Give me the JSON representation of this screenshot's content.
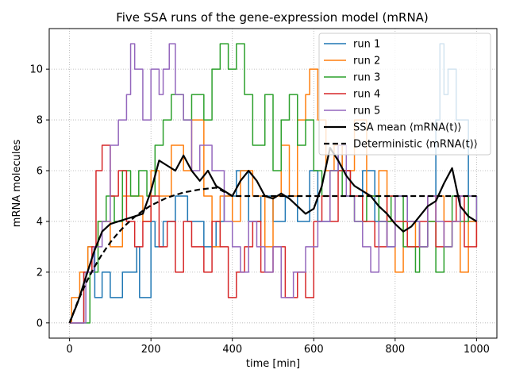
{
  "chart_data": {
    "type": "line",
    "title": "Five SSA runs of the gene-expression model (mRNA)",
    "xlabel": "time [min]",
    "ylabel": "mRNA molecules",
    "xlim": [
      -50,
      1050
    ],
    "ylim": [
      -0.6,
      11.6
    ],
    "xticks": [
      0,
      200,
      400,
      600,
      800,
      1000
    ],
    "yticks": [
      0,
      2,
      4,
      6,
      8,
      10
    ],
    "grid": true,
    "legend_position": "top-right",
    "series": [
      {
        "name": "run 1",
        "color": "#1f77b4",
        "step": true,
        "x": [
          0,
          35,
          45,
          62,
          80,
          100,
          130,
          165,
          172,
          200,
          210,
          230,
          260,
          290,
          330,
          360,
          380,
          410,
          440,
          470,
          500,
          530,
          560,
          590,
          610,
          640,
          660,
          670,
          690,
          720,
          750,
          780,
          800,
          830,
          860,
          880,
          900,
          910,
          920,
          930,
          950,
          980,
          1000
        ],
        "y": [
          0,
          2,
          3,
          1,
          2,
          1,
          2,
          3,
          1,
          4,
          3,
          4,
          5,
          4,
          3,
          4,
          5,
          6,
          4,
          5,
          4,
          5,
          4,
          6,
          4,
          6,
          7,
          6,
          5,
          6,
          4,
          3,
          5,
          4,
          3,
          5,
          8,
          11,
          9,
          10,
          8,
          4,
          5
        ]
      },
      {
        "name": "run 2",
        "color": "#ff7f0e",
        "step": true,
        "x": [
          0,
          5,
          25,
          45,
          70,
          100,
          130,
          180,
          200,
          220,
          250,
          280,
          300,
          330,
          350,
          370,
          400,
          420,
          450,
          480,
          500,
          520,
          540,
          560,
          580,
          590,
          610,
          630,
          650,
          670,
          700,
          730,
          760,
          780,
          800,
          820,
          850,
          880,
          900,
          920,
          940,
          960,
          980,
          1000
        ],
        "y": [
          0,
          1,
          2,
          3,
          4,
          3,
          5,
          4,
          6,
          5,
          7,
          6,
          8,
          5,
          3,
          5,
          4,
          6,
          5,
          3,
          5,
          7,
          5,
          8,
          9,
          10,
          8,
          6,
          7,
          6,
          8,
          5,
          6,
          4,
          2,
          4,
          3,
          4,
          5,
          3,
          4,
          2,
          4,
          3
        ]
      },
      {
        "name": "run 3",
        "color": "#2ca02c",
        "step": true,
        "x": [
          0,
          50,
          70,
          90,
          110,
          130,
          150,
          170,
          190,
          210,
          230,
          250,
          280,
          300,
          330,
          350,
          370,
          390,
          410,
          430,
          450,
          480,
          500,
          520,
          540,
          560,
          580,
          600,
          620,
          640,
          670,
          700,
          730,
          760,
          790,
          820,
          850,
          860,
          880,
          900,
          920,
          940,
          960,
          980,
          1000
        ],
        "y": [
          0,
          2,
          4,
          5,
          4,
          6,
          5,
          6,
          5,
          7,
          8,
          9,
          8,
          9,
          8,
          10,
          11,
          10,
          11,
          9,
          7,
          9,
          6,
          8,
          9,
          7,
          8,
          6,
          5,
          6,
          5,
          4,
          5,
          4,
          5,
          3,
          2,
          3,
          4,
          2,
          3,
          5,
          4,
          5,
          4
        ]
      },
      {
        "name": "run 4",
        "color": "#d62728",
        "step": true,
        "x": [
          0,
          35,
          55,
          65,
          80,
          100,
          120,
          140,
          160,
          180,
          200,
          220,
          240,
          260,
          280,
          300,
          330,
          350,
          370,
          390,
          410,
          430,
          450,
          470,
          500,
          530,
          560,
          580,
          600,
          620,
          640,
          660,
          690,
          720,
          750,
          780,
          800,
          830,
          860,
          880,
          900,
          920,
          950,
          970,
          1000
        ],
        "y": [
          0,
          2,
          3,
          6,
          7,
          5,
          6,
          4,
          3,
          4,
          5,
          3,
          4,
          2,
          4,
          3,
          2,
          4,
          3,
          1,
          2,
          3,
          4,
          2,
          3,
          1,
          2,
          1,
          4,
          5,
          4,
          6,
          5,
          4,
          3,
          5,
          4,
          3,
          4,
          5,
          3,
          4,
          5,
          3,
          4
        ]
      },
      {
        "name": "run 5",
        "color": "#9467bd",
        "step": true,
        "x": [
          0,
          40,
          60,
          80,
          100,
          120,
          140,
          150,
          160,
          180,
          200,
          220,
          230,
          245,
          260,
          280,
          300,
          320,
          350,
          380,
          400,
          420,
          440,
          460,
          480,
          500,
          520,
          550,
          580,
          610,
          640,
          660,
          680,
          700,
          720,
          740,
          760,
          780,
          800,
          830,
          860,
          880,
          900,
          920,
          940,
          960,
          1000
        ],
        "y": [
          0,
          2,
          3,
          4,
          7,
          8,
          9,
          11,
          10,
          8,
          10,
          9,
          10,
          11,
          9,
          8,
          6,
          7,
          6,
          4,
          3,
          2,
          4,
          3,
          2,
          3,
          1,
          2,
          3,
          4,
          6,
          7,
          5,
          4,
          3,
          2,
          4,
          3,
          5,
          4,
          3,
          5,
          4,
          3,
          4,
          5,
          4
        ]
      },
      {
        "name": "SSA mean ⟨mRNA(t)⟩",
        "color": "#000000",
        "step": false,
        "x": [
          0,
          20,
          40,
          60,
          80,
          100,
          120,
          140,
          160,
          180,
          200,
          220,
          240,
          260,
          280,
          300,
          320,
          340,
          360,
          380,
          400,
          420,
          440,
          460,
          480,
          500,
          520,
          540,
          560,
          580,
          600,
          620,
          640,
          660,
          680,
          700,
          720,
          740,
          760,
          780,
          800,
          820,
          840,
          860,
          880,
          900,
          920,
          940,
          960,
          980,
          1000
        ],
        "y": [
          0,
          0.8,
          1.8,
          2.8,
          3.6,
          3.9,
          4.0,
          4.1,
          4.2,
          4.3,
          5.2,
          6.4,
          6.2,
          6.0,
          6.6,
          6.0,
          5.6,
          6.0,
          5.4,
          5.2,
          5.0,
          5.6,
          6.0,
          5.6,
          5.0,
          4.9,
          5.1,
          4.9,
          4.6,
          4.3,
          4.5,
          5.4,
          6.9,
          6.4,
          5.8,
          5.4,
          5.2,
          5.0,
          4.6,
          4.3,
          3.9,
          3.6,
          3.8,
          4.2,
          4.6,
          4.8,
          5.5,
          6.1,
          4.6,
          4.2,
          4.0
        ]
      },
      {
        "name": "Deterministic ⟨mRNA(t)⟩",
        "color": "#000000",
        "step": false,
        "dashed": true,
        "x": [
          0,
          20,
          40,
          60,
          80,
          100,
          120,
          140,
          160,
          180,
          200,
          240,
          280,
          320,
          360,
          400,
          500,
          600,
          700,
          800,
          900,
          1000
        ],
        "y": [
          0,
          0.84,
          1.56,
          2.18,
          2.71,
          3.17,
          3.56,
          3.89,
          4.18,
          4.42,
          4.63,
          4.94,
          5.14,
          5.26,
          5.33,
          5.0,
          5.0,
          5.0,
          5.0,
          5.0,
          5.0,
          5.0
        ]
      }
    ]
  }
}
